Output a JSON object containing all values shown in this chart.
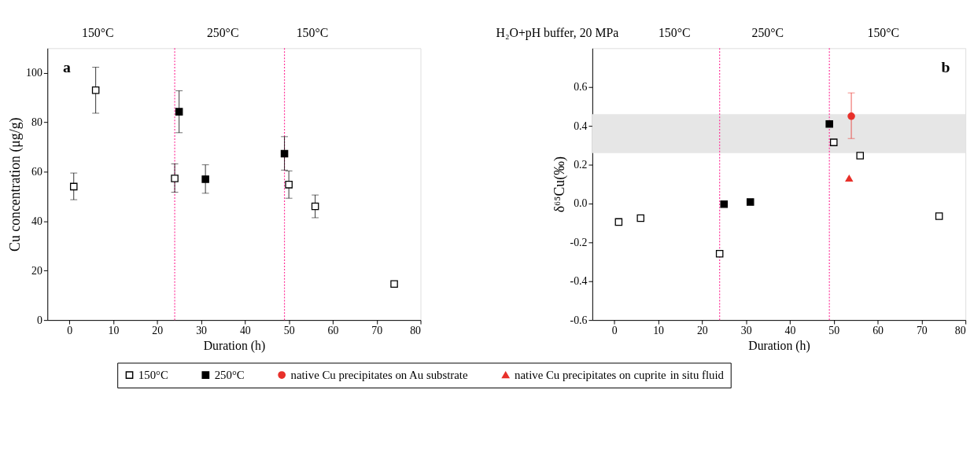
{
  "chart_data": [
    {
      "type": "scatter",
      "xlabel": "Duration (h)",
      "ylabel": "Cu concentration (μg/g)",
      "legend": "bottom",
      "xlim": [
        -5,
        80
      ],
      "xticks": [
        0,
        10,
        20,
        30,
        40,
        50,
        60,
        70,
        80
      ],
      "ylim": [
        0,
        110
      ],
      "yticks": [
        0,
        20,
        40,
        60,
        80,
        100
      ],
      "grid": false,
      "series": [
        {
          "name": "150°C",
          "color": "#ffffff",
          "marker": "square",
          "x": [
            1,
            6,
            24,
            50,
            56,
            74
          ],
          "values": [
            54,
            93,
            57.3,
            54.8,
            46,
            14.6
          ],
          "errors": [
            [
              48.7,
              59.5
            ],
            [
              83.7,
              102.3
            ],
            [
              51.7,
              63.2
            ],
            [
              49.3,
              60.3
            ],
            [
              41.4,
              50.6
            ],
            [
              13.9,
              15.3
            ]
          ]
        },
        {
          "name": "250°C",
          "color": "#000000",
          "marker": "square",
          "x": [
            25,
            31,
            49
          ],
          "values": [
            84.3,
            57,
            67.3
          ],
          "errors": [
            [
              75.8,
              92.8
            ],
            [
              51.3,
              62.8
            ],
            [
              60.7,
              74.2
            ]
          ]
        }
      ],
      "ref_lines": [
        {
          "axis": "x",
          "value": 24,
          "color": "#ff3399",
          "line_style": "dotted"
        },
        {
          "axis": "x",
          "value": 49,
          "color": "#ff3399",
          "line_style": "dotted"
        }
      ],
      "annotations": [
        "a",
        "150°C",
        "250°C",
        "150°C"
      ]
    },
    {
      "type": "scatter",
      "xlabel": "Duration (h)",
      "ylabel": "δ⁶⁵Cu(‰)",
      "xlim": [
        -5,
        80
      ],
      "xticks": [
        0,
        10,
        20,
        30,
        40,
        50,
        60,
        70,
        80
      ],
      "ylim": [
        -0.6,
        0.8
      ],
      "yticks": [
        -0.6,
        -0.4,
        -0.2,
        {
          "value": 0,
          "label": "0.0"
        },
        0.2,
        0.4,
        0.6
      ],
      "grid": false,
      "legend": "bottom",
      "legend_title": "in situ fluid",
      "series": [
        {
          "color": "#ffffff",
          "marker": "square",
          "x": [
            1,
            6,
            24,
            50,
            56,
            74
          ],
          "values": [
            -0.095,
            -0.075,
            -0.258,
            0.315,
            0.247,
            -0.065
          ]
        },
        {
          "color": "#000000",
          "marker": "square",
          "x": [
            25,
            31,
            49
          ],
          "values": [
            -0.003,
            0.008,
            0.41
          ]
        },
        {
          "name": "native Cu precipitates on Au substrate",
          "color": "#e8302a",
          "marker": "circle",
          "x": [
            54
          ],
          "values": [
            0.45
          ],
          "errors": [
            [
              0.335,
              0.57
            ]
          ]
        },
        {
          "name": "native Cu precipitates on cuprite",
          "color": "#e8302a",
          "marker": "triangle",
          "x": [
            53.5
          ],
          "values": [
            0.13
          ]
        }
      ],
      "ref_lines": [
        {
          "axis": "x",
          "value": 24,
          "color": "#ff3399",
          "line_style": "dotted"
        },
        {
          "axis": "x",
          "value": 49,
          "color": "#ff3399",
          "line_style": "dotted"
        }
      ],
      "bands": [
        {
          "axis": "y",
          "from": 0.26,
          "to": 0.46,
          "color": "#e6e6e6"
        }
      ],
      "annotations": [
        "b",
        "150°C",
        "250°C",
        "150°C",
        "H₂O+pH buffer, 20 MPa"
      ]
    }
  ]
}
